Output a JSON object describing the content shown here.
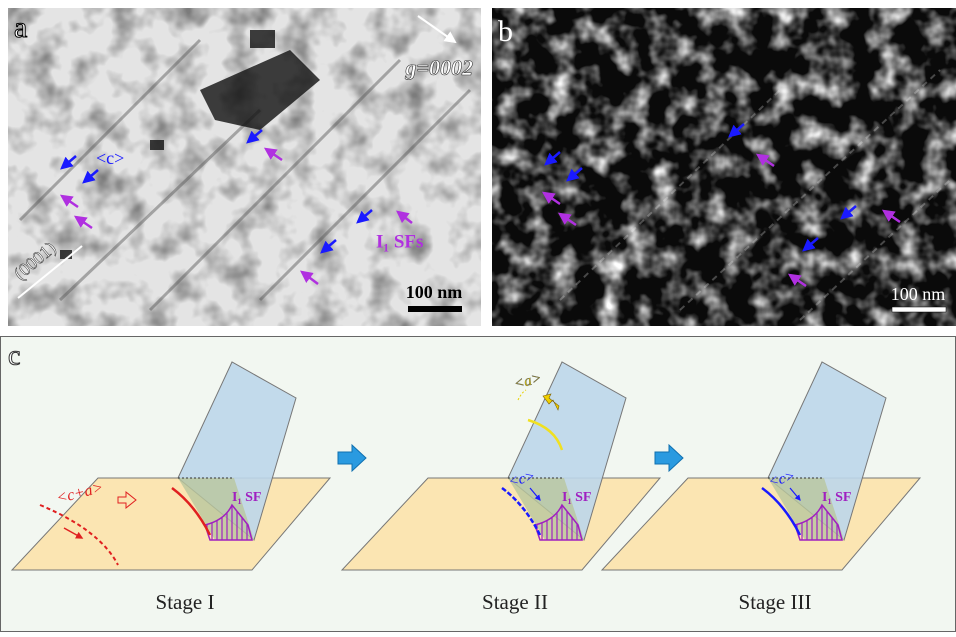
{
  "panel_a": {
    "label": "a",
    "g_vector": "g=0002",
    "dislocation": "<c>",
    "fault": "I₁ SFs",
    "scale_bar": "100 nm",
    "plane": "(0001)"
  },
  "panel_b": {
    "label": "b",
    "scale_bar": "100 nm"
  },
  "panel_c": {
    "label": "c",
    "stages": [
      {
        "name": "Stage I",
        "dislocation": "<c+a>",
        "fault": "I₁ SF"
      },
      {
        "name": "Stage II",
        "dislocation": "<c>",
        "emitted": "<a>",
        "fault": "I₁ SF"
      },
      {
        "name": "Stage III",
        "dislocation": "<c>",
        "fault": "I₁ SF"
      }
    ]
  }
}
